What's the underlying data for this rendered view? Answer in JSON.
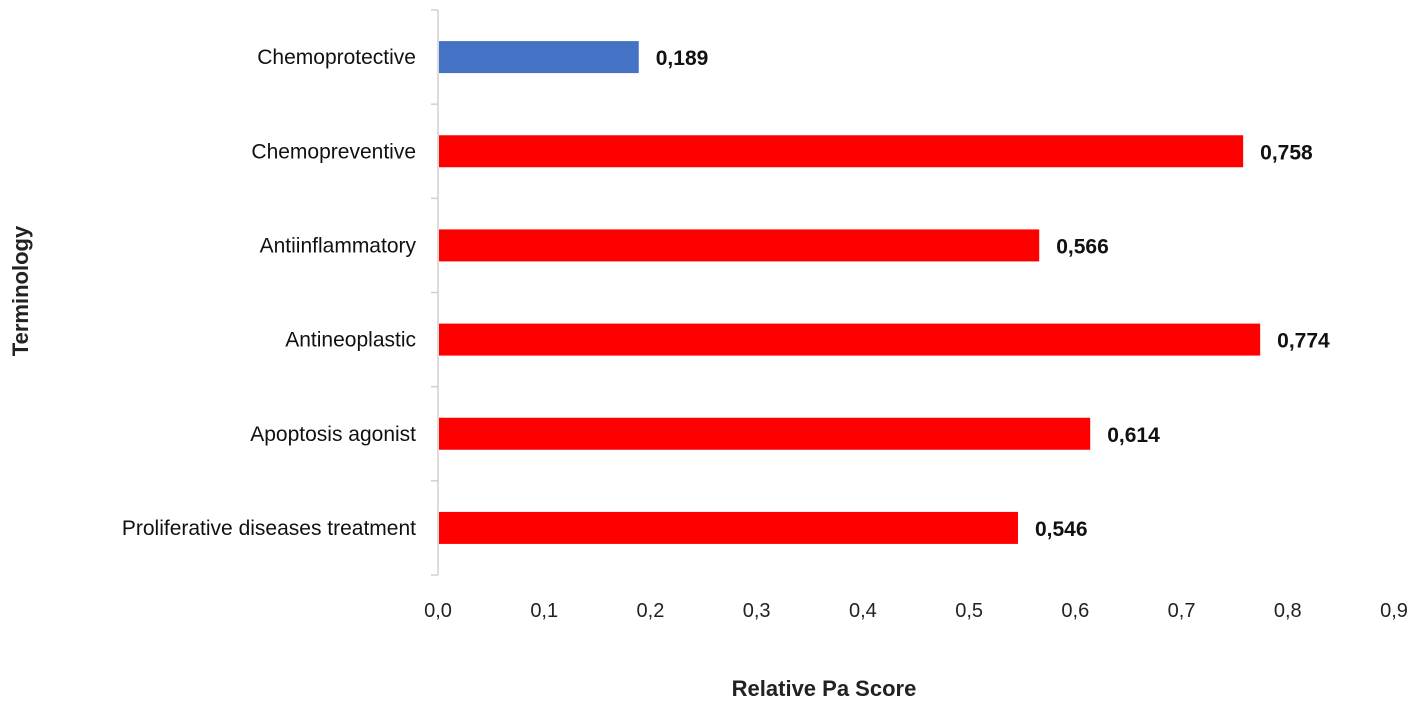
{
  "chart_data": {
    "type": "bar",
    "orientation": "horizontal",
    "title": "",
    "xlabel": "Relative Pa Score",
    "ylabel": "Terminology",
    "xlim": [
      0,
      0.9
    ],
    "ticks": [
      "0,0",
      "0,1",
      "0,2",
      "0,3",
      "0,4",
      "0,5",
      "0,6",
      "0,7",
      "0,8",
      "0,9"
    ],
    "grid": false,
    "categories": [
      "Chemoprotective",
      "Chemopreventive",
      "Antiinflammatory",
      "Antineoplastic",
      "Apoptosis agonist",
      "Proliferative diseases treatment"
    ],
    "values": [
      0.189,
      0.758,
      0.566,
      0.774,
      0.614,
      0.546
    ],
    "value_labels": [
      "0,189",
      "0,758",
      "0,566",
      "0,774",
      "0,614",
      "0,546"
    ],
    "colors": [
      "#4472C4",
      "#FF0000",
      "#FF0000",
      "#FF0000",
      "#FF0000",
      "#FF0000"
    ],
    "axis_color": "#d0d0d0"
  }
}
